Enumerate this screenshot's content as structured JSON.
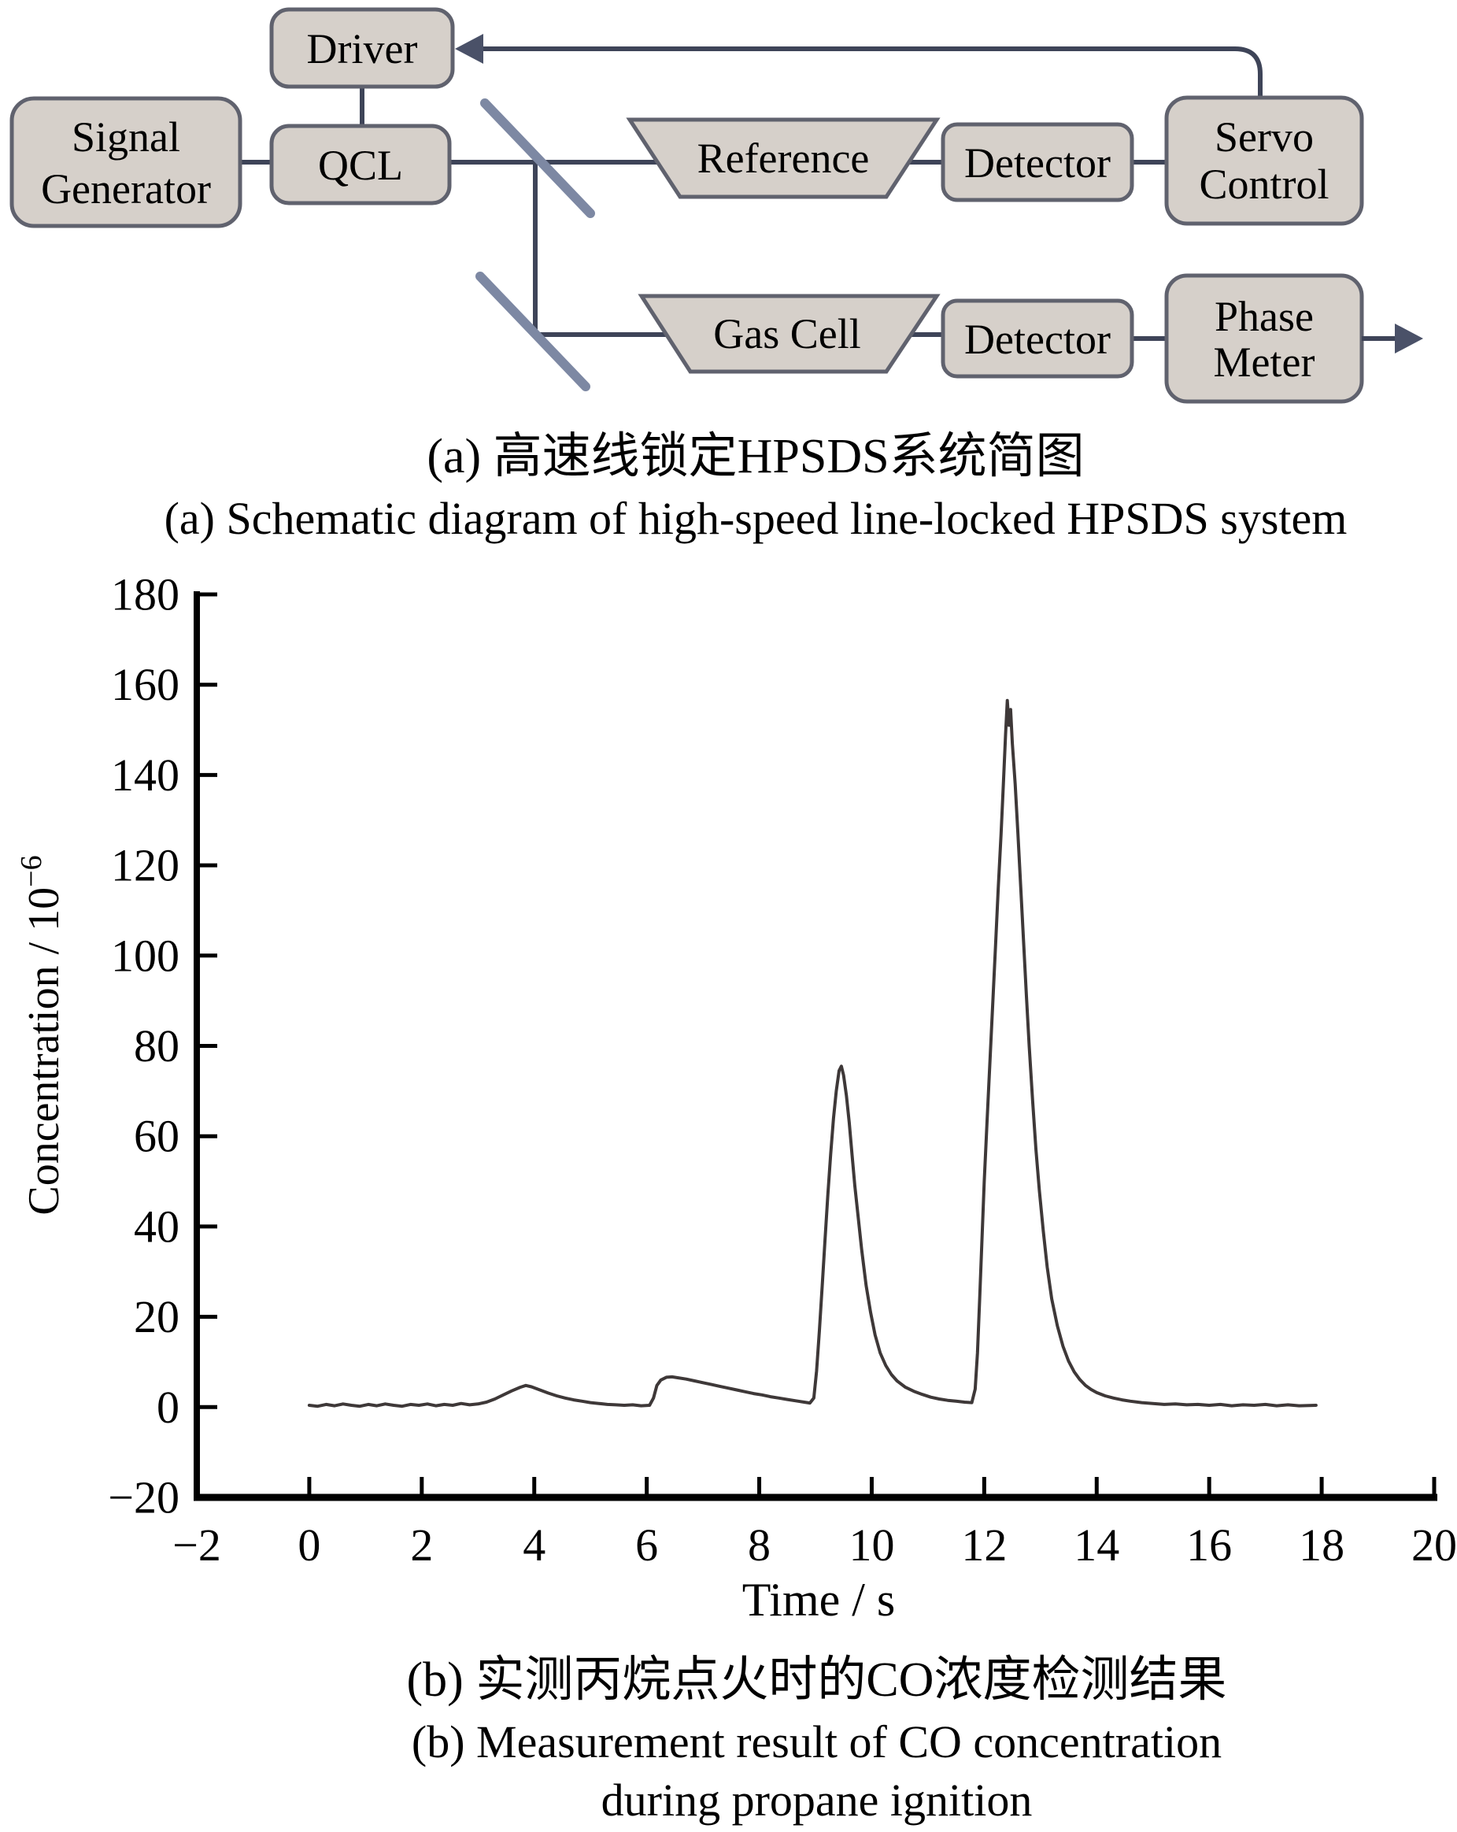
{
  "colors": {
    "box_fill": "#d6d0ca",
    "box_border": "#60626e",
    "connector": "#3e4458",
    "splitter": "#7d88a3",
    "arrow": "#4a5168",
    "curve": "#3e3838",
    "axis": "#000000",
    "text": "#000000"
  },
  "diagram": {
    "blocks": {
      "signal_generator": {
        "line1": "Signal",
        "line2": "Generator"
      },
      "driver": {
        "label": "Driver"
      },
      "qcl": {
        "label": "QCL"
      },
      "reference": {
        "label": "Reference"
      },
      "detector_reference": {
        "label": "Detector"
      },
      "servo_control": {
        "line1": "Servo",
        "line2": "Control"
      },
      "gas_cell": {
        "label": "Gas Cell"
      },
      "detector_gas": {
        "label": "Detector"
      },
      "phase_meter": {
        "line1": "Phase",
        "line2": "Meter"
      }
    }
  },
  "caption_a": {
    "zh": "(a) 高速线锁定HPSDS系统简图",
    "en": "(a) Schematic diagram of high-speed line-locked HPSDS system"
  },
  "caption_b": {
    "zh": "(b) 实测丙烷点火时的CO浓度检测结果",
    "en_line1": "(b) Measurement result of CO concentration",
    "en_line2": "during propane ignition"
  },
  "chart_data": {
    "type": "line",
    "title": "",
    "xlabel": "Time / s",
    "ylabel": "Concentration / 10⁻⁶",
    "ylabel_base": "Concentration / 10",
    "ylabel_exp": "−6",
    "xlim": [
      -2,
      20
    ],
    "ylim": [
      -20,
      180
    ],
    "grid": false,
    "legend": null,
    "xticks": [
      {
        "v": -2,
        "label": "−2"
      },
      {
        "v": 0,
        "label": "0"
      },
      {
        "v": 2,
        "label": "2"
      },
      {
        "v": 4,
        "label": "4"
      },
      {
        "v": 6,
        "label": "6"
      },
      {
        "v": 8,
        "label": "8"
      },
      {
        "v": 10,
        "label": "10"
      },
      {
        "v": 12,
        "label": "12"
      },
      {
        "v": 14,
        "label": "14"
      },
      {
        "v": 16,
        "label": "16"
      },
      {
        "v": 18,
        "label": "18"
      },
      {
        "v": 20,
        "label": "20"
      }
    ],
    "yticks": [
      {
        "v": -20,
        "label": "−20"
      },
      {
        "v": 0,
        "label": "0"
      },
      {
        "v": 20,
        "label": "20"
      },
      {
        "v": 40,
        "label": "40"
      },
      {
        "v": 60,
        "label": "60"
      },
      {
        "v": 80,
        "label": "80"
      },
      {
        "v": 100,
        "label": "100"
      },
      {
        "v": 120,
        "label": "120"
      },
      {
        "v": 140,
        "label": "140"
      },
      {
        "v": 160,
        "label": "160"
      },
      {
        "v": 180,
        "label": "180"
      }
    ],
    "series": [
      {
        "name": "CO concentration during propane ignition",
        "points": [
          [
            0,
            0.4
          ],
          [
            0.15,
            0.2
          ],
          [
            0.3,
            0.6
          ],
          [
            0.45,
            0.3
          ],
          [
            0.6,
            0.7
          ],
          [
            0.75,
            0.4
          ],
          [
            0.9,
            0.2
          ],
          [
            1.05,
            0.6
          ],
          [
            1.2,
            0.3
          ],
          [
            1.35,
            0.7
          ],
          [
            1.5,
            0.4
          ],
          [
            1.65,
            0.2
          ],
          [
            1.8,
            0.6
          ],
          [
            1.95,
            0.4
          ],
          [
            2.1,
            0.7
          ],
          [
            2.25,
            0.3
          ],
          [
            2.4,
            0.6
          ],
          [
            2.55,
            0.4
          ],
          [
            2.7,
            0.8
          ],
          [
            2.85,
            0.5
          ],
          [
            3.0,
            0.7
          ],
          [
            3.15,
            1.1
          ],
          [
            3.3,
            1.8
          ],
          [
            3.45,
            2.7
          ],
          [
            3.6,
            3.6
          ],
          [
            3.75,
            4.4
          ],
          [
            3.85,
            4.8
          ],
          [
            3.95,
            4.5
          ],
          [
            4.1,
            3.8
          ],
          [
            4.25,
            3.1
          ],
          [
            4.4,
            2.5
          ],
          [
            4.55,
            2.0
          ],
          [
            4.7,
            1.6
          ],
          [
            4.85,
            1.3
          ],
          [
            5.0,
            1.0
          ],
          [
            5.15,
            0.8
          ],
          [
            5.3,
            0.6
          ],
          [
            5.45,
            0.5
          ],
          [
            5.6,
            0.4
          ],
          [
            5.75,
            0.5
          ],
          [
            5.9,
            0.3
          ],
          [
            6.05,
            0.4
          ],
          [
            6.12,
            2.0
          ],
          [
            6.18,
            4.8
          ],
          [
            6.25,
            6.0
          ],
          [
            6.35,
            6.6
          ],
          [
            6.45,
            6.7
          ],
          [
            6.55,
            6.5
          ],
          [
            6.7,
            6.2
          ],
          [
            6.85,
            5.8
          ],
          [
            7.0,
            5.4
          ],
          [
            7.15,
            5.0
          ],
          [
            7.3,
            4.6
          ],
          [
            7.45,
            4.2
          ],
          [
            7.6,
            3.8
          ],
          [
            7.75,
            3.4
          ],
          [
            7.9,
            3.0
          ],
          [
            8.05,
            2.7
          ],
          [
            8.2,
            2.3
          ],
          [
            8.35,
            2.0
          ],
          [
            8.5,
            1.7
          ],
          [
            8.65,
            1.4
          ],
          [
            8.8,
            1.1
          ],
          [
            8.9,
            0.9
          ],
          [
            8.97,
            2.0
          ],
          [
            9.02,
            8
          ],
          [
            9.07,
            17
          ],
          [
            9.12,
            27
          ],
          [
            9.17,
            37
          ],
          [
            9.22,
            47
          ],
          [
            9.27,
            56
          ],
          [
            9.32,
            64
          ],
          [
            9.37,
            70
          ],
          [
            9.42,
            74.5
          ],
          [
            9.46,
            75.5
          ],
          [
            9.5,
            73.5
          ],
          [
            9.55,
            69
          ],
          [
            9.6,
            63
          ],
          [
            9.65,
            56
          ],
          [
            9.7,
            49
          ],
          [
            9.76,
            42
          ],
          [
            9.82,
            35
          ],
          [
            9.9,
            27
          ],
          [
            9.98,
            21
          ],
          [
            10.06,
            16
          ],
          [
            10.15,
            12
          ],
          [
            10.25,
            9.2
          ],
          [
            10.35,
            7.2
          ],
          [
            10.45,
            5.8
          ],
          [
            10.6,
            4.4
          ],
          [
            10.75,
            3.5
          ],
          [
            10.9,
            2.8
          ],
          [
            11.05,
            2.2
          ],
          [
            11.2,
            1.8
          ],
          [
            11.35,
            1.5
          ],
          [
            11.5,
            1.3
          ],
          [
            11.65,
            1.1
          ],
          [
            11.78,
            1.0
          ],
          [
            11.84,
            4
          ],
          [
            11.88,
            12
          ],
          [
            11.92,
            24
          ],
          [
            11.96,
            37
          ],
          [
            12.0,
            50
          ],
          [
            12.05,
            63
          ],
          [
            12.1,
            76
          ],
          [
            12.15,
            89
          ],
          [
            12.2,
            102
          ],
          [
            12.25,
            115
          ],
          [
            12.3,
            127
          ],
          [
            12.34,
            138
          ],
          [
            12.38,
            149
          ],
          [
            12.41,
            156.5
          ],
          [
            12.44,
            151
          ],
          [
            12.47,
            154.5
          ],
          [
            12.5,
            147
          ],
          [
            12.55,
            138
          ],
          [
            12.6,
            127
          ],
          [
            12.65,
            115
          ],
          [
            12.7,
            103
          ],
          [
            12.75,
            91
          ],
          [
            12.8,
            80
          ],
          [
            12.86,
            68
          ],
          [
            12.92,
            57
          ],
          [
            12.98,
            48
          ],
          [
            13.05,
            39
          ],
          [
            13.12,
            31
          ],
          [
            13.2,
            24
          ],
          [
            13.3,
            18
          ],
          [
            13.4,
            13.5
          ],
          [
            13.5,
            10.2
          ],
          [
            13.6,
            7.8
          ],
          [
            13.7,
            6.1
          ],
          [
            13.8,
            4.8
          ],
          [
            13.9,
            3.9
          ],
          [
            14.0,
            3.2
          ],
          [
            14.15,
            2.5
          ],
          [
            14.3,
            2.0
          ],
          [
            14.45,
            1.6
          ],
          [
            14.6,
            1.3
          ],
          [
            14.8,
            1.0
          ],
          [
            15.0,
            0.8
          ],
          [
            15.2,
            0.6
          ],
          [
            15.4,
            0.7
          ],
          [
            15.6,
            0.5
          ],
          [
            15.8,
            0.6
          ],
          [
            16.0,
            0.4
          ],
          [
            16.2,
            0.6
          ],
          [
            16.4,
            0.3
          ],
          [
            16.6,
            0.5
          ],
          [
            16.8,
            0.4
          ],
          [
            17.0,
            0.6
          ],
          [
            17.2,
            0.3
          ],
          [
            17.4,
            0.5
          ],
          [
            17.6,
            0.3
          ],
          [
            17.9,
            0.4
          ]
        ]
      }
    ],
    "line_color": "#3e3838"
  }
}
